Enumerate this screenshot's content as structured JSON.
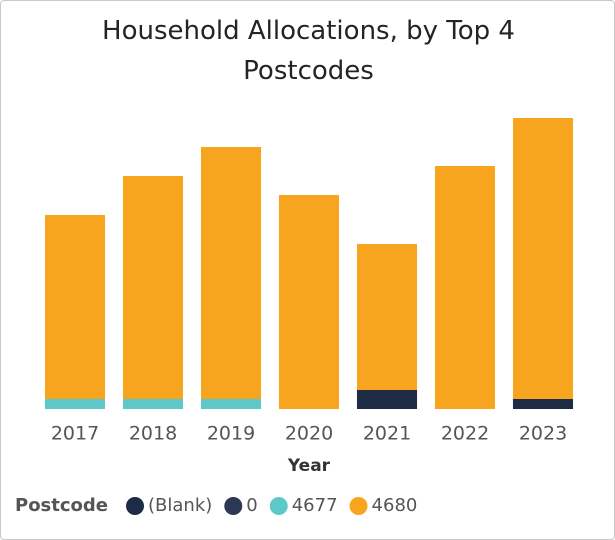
{
  "chart_data": {
    "type": "stacked_bar",
    "title": "Household Allocations, by Top 4 Postcodes",
    "x_label": "Year",
    "legend_title": "Postcode",
    "categories": [
      "2017",
      "2018",
      "2019",
      "2020",
      "2021",
      "2022",
      "2023"
    ],
    "series": [
      {
        "name": "(Blank)",
        "color": "#1e2b45",
        "values": [
          null,
          null,
          null,
          null,
          19,
          null,
          10
        ]
      },
      {
        "name": "0",
        "color": "#2d3854",
        "values": [
          null,
          null,
          null,
          null,
          null,
          null,
          null
        ]
      },
      {
        "name": "4677",
        "color": "#5ec8c8",
        "values": [
          10,
          10,
          10,
          null,
          null,
          null,
          null
        ]
      },
      {
        "name": "4680",
        "color": "#f7a51e",
        "values": [
          184,
          223,
          252,
          214,
          146,
          243,
          281
        ]
      }
    ],
    "ylim": [
      0,
      300
    ],
    "legend": "bottom-left"
  }
}
